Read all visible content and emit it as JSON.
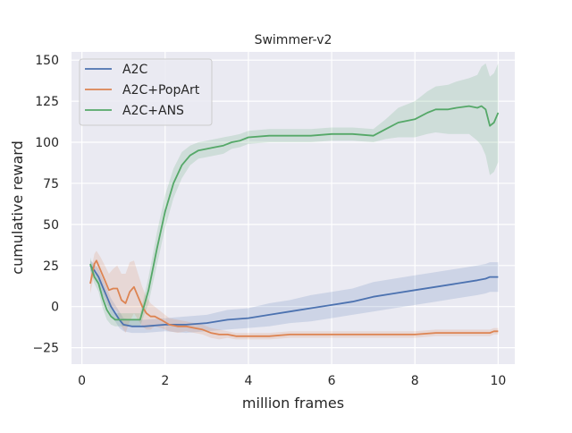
{
  "chart_data": {
    "type": "line",
    "title": "Swimmer-v2",
    "xlabel": "million frames",
    "ylabel": "cumulative reward",
    "xlim": [
      -0.25,
      10.4
    ],
    "ylim": [
      -35,
      155
    ],
    "xticks": [
      0,
      2,
      4,
      6,
      8,
      10
    ],
    "yticks": [
      -25,
      0,
      25,
      50,
      75,
      100,
      125,
      150
    ],
    "grid": true,
    "legend_position": "top-left",
    "series": [
      {
        "name": "A2C",
        "color": "#4c72b0",
        "x": [
          0.2,
          0.3,
          0.4,
          0.5,
          0.6,
          0.7,
          0.8,
          0.9,
          1.0,
          1.2,
          1.5,
          2.0,
          2.5,
          3.0,
          3.5,
          4.0,
          4.5,
          5.0,
          5.5,
          6.0,
          6.5,
          7.0,
          7.5,
          8.0,
          8.5,
          9.0,
          9.5,
          9.7,
          9.8,
          9.9,
          10.0
        ],
        "values": [
          25,
          22,
          18,
          12,
          6,
          0,
          -4,
          -8,
          -11,
          -12,
          -12,
          -11,
          -11,
          -10,
          -8,
          -7,
          -5,
          -3,
          -1,
          1,
          3,
          6,
          8,
          10,
          12,
          14,
          16,
          17,
          18,
          18,
          18
        ],
        "band": [
          3,
          4,
          5,
          5,
          5,
          5,
          5,
          5,
          4,
          4,
          4,
          4,
          5,
          5,
          6,
          6,
          7,
          7,
          8,
          8,
          8,
          9,
          9,
          9,
          9,
          9,
          9,
          9,
          9,
          9,
          9
        ]
      },
      {
        "name": "A2C+PopArt",
        "color": "#dd8452",
        "x": [
          0.2,
          0.3,
          0.35,
          0.45,
          0.55,
          0.65,
          0.75,
          0.85,
          0.95,
          1.05,
          1.15,
          1.25,
          1.35,
          1.45,
          1.55,
          1.65,
          1.75,
          1.9,
          2.1,
          2.3,
          2.5,
          2.7,
          2.9,
          3.1,
          3.3,
          3.5,
          3.7,
          4.0,
          4.5,
          5.0,
          5.5,
          6.0,
          6.5,
          7.0,
          7.5,
          8.0,
          8.5,
          9.0,
          9.5,
          9.8,
          9.9,
          10.0
        ],
        "values": [
          14,
          26,
          28,
          22,
          16,
          10,
          11,
          11,
          4,
          2,
          9,
          12,
          6,
          0,
          -4,
          -6,
          -6,
          -8,
          -11,
          -12,
          -12,
          -13,
          -14,
          -16,
          -17,
          -17,
          -18,
          -18,
          -18,
          -17,
          -17,
          -17,
          -17,
          -17,
          -17,
          -17,
          -16,
          -16,
          -16,
          -16,
          -15,
          -15
        ],
        "band": [
          6,
          6,
          6,
          8,
          9,
          10,
          12,
          14,
          16,
          18,
          18,
          16,
          14,
          12,
          10,
          8,
          6,
          5,
          4,
          4,
          3,
          3,
          3,
          3,
          3,
          2,
          2,
          2,
          2,
          2,
          2,
          2,
          2,
          2,
          2,
          2,
          2,
          2,
          2,
          2,
          2,
          2
        ]
      },
      {
        "name": "A2C+ANS",
        "color": "#55a868",
        "x": [
          0.2,
          0.3,
          0.4,
          0.5,
          0.6,
          0.7,
          0.8,
          0.9,
          1.0,
          1.2,
          1.4,
          1.6,
          1.8,
          2.0,
          2.2,
          2.4,
          2.6,
          2.8,
          3.0,
          3.2,
          3.4,
          3.6,
          3.8,
          4.0,
          4.5,
          5.0,
          5.5,
          6.0,
          6.5,
          7.0,
          7.3,
          7.6,
          8.0,
          8.3,
          8.5,
          8.8,
          9.0,
          9.3,
          9.5,
          9.6,
          9.7,
          9.8,
          9.9,
          10.0
        ],
        "values": [
          26,
          18,
          14,
          5,
          -2,
          -6,
          -8,
          -8,
          -8,
          -8,
          -8,
          10,
          35,
          58,
          75,
          86,
          92,
          95,
          96,
          97,
          98,
          100,
          101,
          103,
          104,
          104,
          104,
          105,
          105,
          104,
          108,
          112,
          114,
          118,
          120,
          120,
          121,
          122,
          121,
          122,
          120,
          110,
          112,
          118
        ],
        "band": [
          4,
          4,
          5,
          6,
          6,
          5,
          4,
          4,
          4,
          4,
          4,
          8,
          10,
          10,
          9,
          8,
          6,
          5,
          5,
          5,
          5,
          4,
          4,
          4,
          4,
          4,
          4,
          4,
          4,
          4,
          6,
          9,
          11,
          13,
          14,
          15,
          16,
          17,
          20,
          24,
          28,
          30,
          30,
          30
        ]
      }
    ]
  }
}
